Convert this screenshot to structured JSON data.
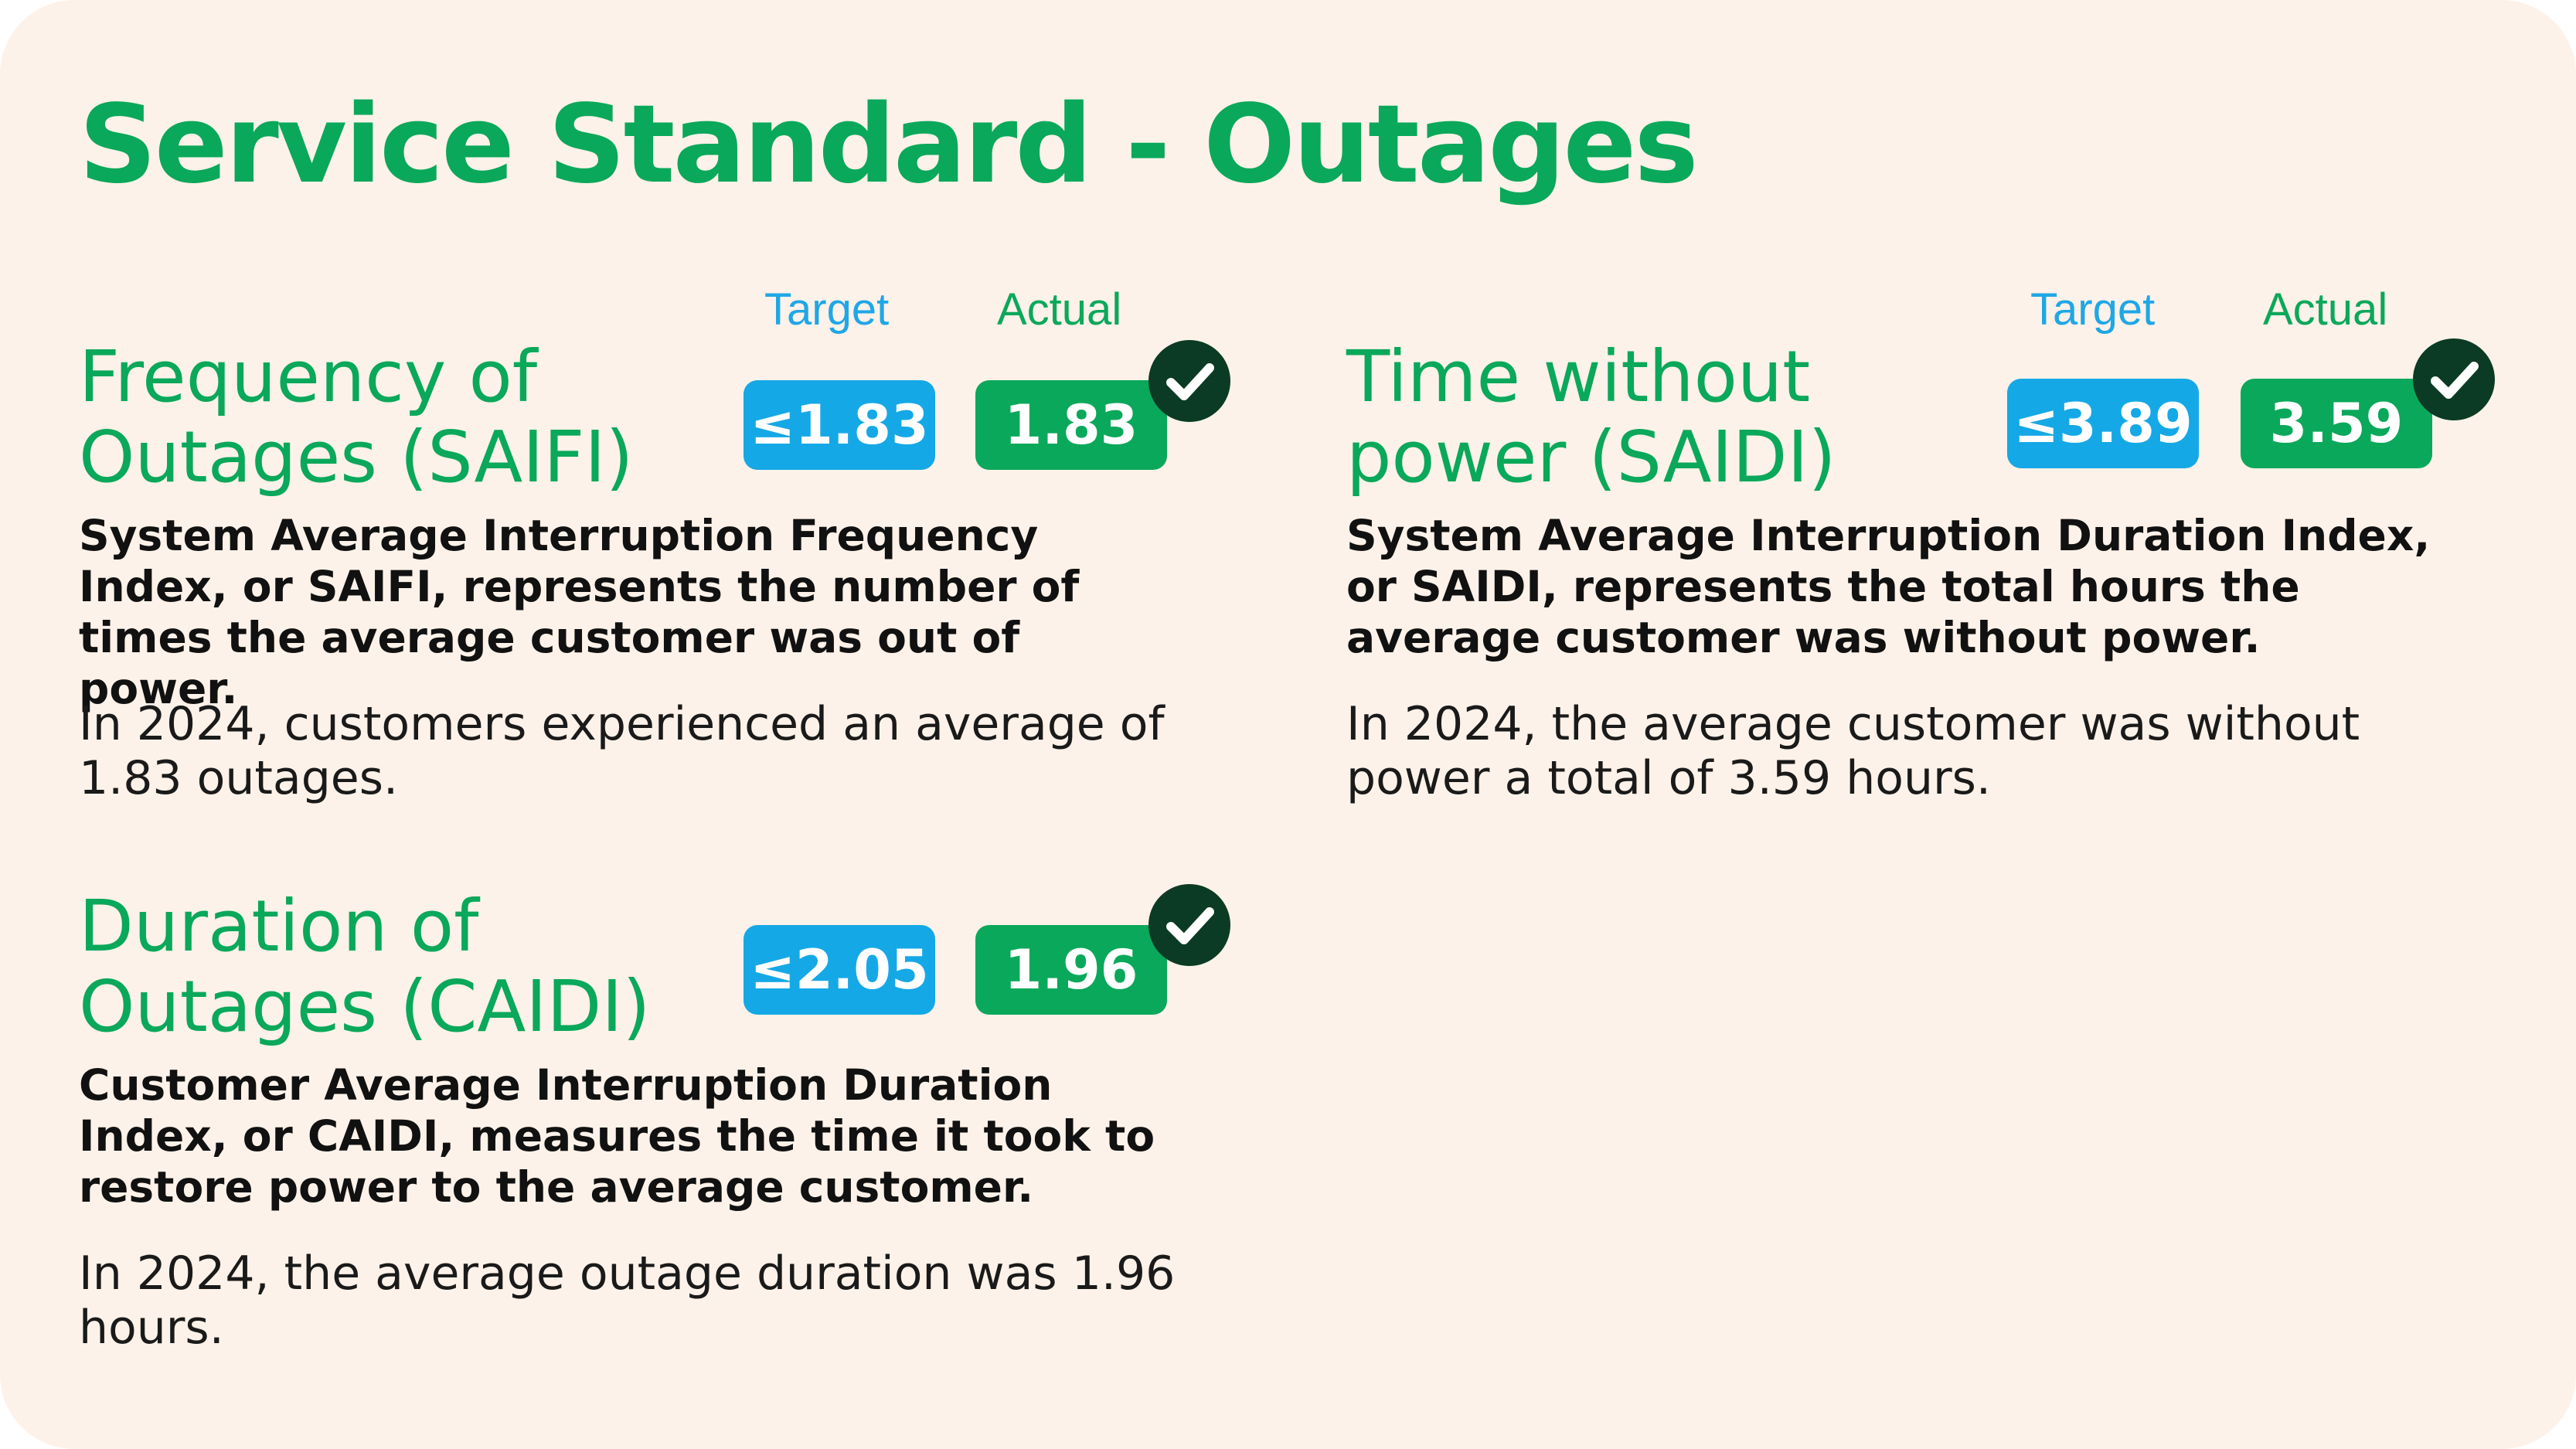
{
  "title": "Service Standard - Outages",
  "labels": {
    "target": "Target",
    "actual": "Actual"
  },
  "colors": {
    "green": "#0aa85a",
    "blue": "#15a8e6",
    "check_dark": "#0b3b24",
    "background": "#fdf2e9"
  },
  "metrics": [
    {
      "title": "Frequency of\nOutages (SAIFI)",
      "target": "≤1.83",
      "actual": "1.83",
      "met": true,
      "icon": "check-icon",
      "description": "System Average Interruption Frequency Index, or SAIFI, represents the number of times the average customer was out of power.",
      "summary": "In 2024, customers experienced an average of 1.83 outages."
    },
    {
      "title": "Time without\npower (SAIDI)",
      "target": "≤3.89",
      "actual": "3.59",
      "met": true,
      "icon": "check-icon",
      "description": "System Average Interruption Duration Index, or SAIDI, represents the total hours the average customer was without power.",
      "summary": "In 2024, the average customer was without power a total of 3.59 hours."
    },
    {
      "title": "Duration of\nOutages (CAIDI)",
      "target": "≤2.05",
      "actual": "1.96",
      "met": true,
      "icon": "check-icon",
      "description": "Customer Average Interruption Duration Index, or CAIDI, measures the time it took to restore power to the average customer.",
      "summary": "In 2024, the average outage duration was 1.96 hours."
    }
  ]
}
